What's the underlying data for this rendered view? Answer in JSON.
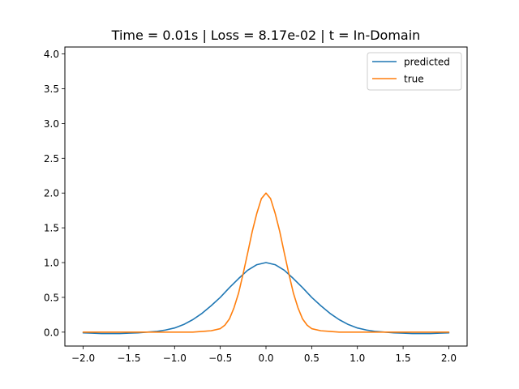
{
  "chart_data": {
    "type": "line",
    "title": "Time = 0.01s | Loss = 8.17e-02 | t = In-Domain",
    "xlabel": "",
    "ylabel": "",
    "xlim": [
      -2.2,
      2.2
    ],
    "ylim": [
      -0.2,
      4.1
    ],
    "xticks": [
      -2.0,
      -1.5,
      -1.0,
      -0.5,
      0.0,
      0.5,
      1.0,
      1.5,
      2.0
    ],
    "xtick_labels": [
      "−2.0",
      "−1.5",
      "−1.0",
      "−0.5",
      "0.0",
      "0.5",
      "1.0",
      "1.5",
      "2.0"
    ],
    "yticks": [
      0.0,
      0.5,
      1.0,
      1.5,
      2.0,
      2.5,
      3.0,
      3.5,
      4.0
    ],
    "ytick_labels": [
      "0.0",
      "0.5",
      "1.0",
      "1.5",
      "2.0",
      "2.5",
      "3.0",
      "3.5",
      "4.0"
    ],
    "grid": false,
    "legend_position": "top-right",
    "series": [
      {
        "name": "predicted",
        "color": "#1f77b4",
        "x": [
          -2.0,
          -1.9,
          -1.8,
          -1.7,
          -1.6,
          -1.5,
          -1.4,
          -1.3,
          -1.2,
          -1.1,
          -1.0,
          -0.9,
          -0.8,
          -0.7,
          -0.6,
          -0.5,
          -0.4,
          -0.3,
          -0.2,
          -0.1,
          0.0,
          0.1,
          0.2,
          0.3,
          0.4,
          0.5,
          0.6,
          0.7,
          0.8,
          0.9,
          1.0,
          1.1,
          1.2,
          1.3,
          1.4,
          1.5,
          1.6,
          1.7,
          1.8,
          1.9,
          2.0
        ],
        "y": [
          -0.01,
          -0.015,
          -0.02,
          -0.02,
          -0.02,
          -0.015,
          -0.01,
          0.0,
          0.01,
          0.03,
          0.06,
          0.11,
          0.18,
          0.27,
          0.38,
          0.5,
          0.64,
          0.77,
          0.89,
          0.97,
          1.0,
          0.97,
          0.89,
          0.77,
          0.64,
          0.5,
          0.38,
          0.27,
          0.18,
          0.11,
          0.06,
          0.03,
          0.01,
          0.0,
          -0.01,
          -0.015,
          -0.02,
          -0.02,
          -0.02,
          -0.015,
          -0.01
        ]
      },
      {
        "name": "true",
        "color": "#ff7f0e",
        "x": [
          -2.0,
          -1.5,
          -1.0,
          -0.8,
          -0.7,
          -0.6,
          -0.5,
          -0.45,
          -0.4,
          -0.35,
          -0.3,
          -0.25,
          -0.2,
          -0.15,
          -0.1,
          -0.05,
          0.0,
          0.05,
          0.1,
          0.15,
          0.2,
          0.25,
          0.3,
          0.35,
          0.4,
          0.45,
          0.5,
          0.6,
          0.7,
          0.8,
          1.0,
          1.5,
          2.0
        ],
        "y": [
          0.0,
          0.0,
          0.0,
          0.0,
          0.01,
          0.02,
          0.05,
          0.1,
          0.19,
          0.35,
          0.56,
          0.84,
          1.14,
          1.45,
          1.71,
          1.92,
          2.0,
          1.92,
          1.71,
          1.45,
          1.14,
          0.84,
          0.56,
          0.35,
          0.19,
          0.1,
          0.05,
          0.02,
          0.01,
          0.0,
          0.0,
          0.0,
          0.0
        ]
      }
    ]
  }
}
